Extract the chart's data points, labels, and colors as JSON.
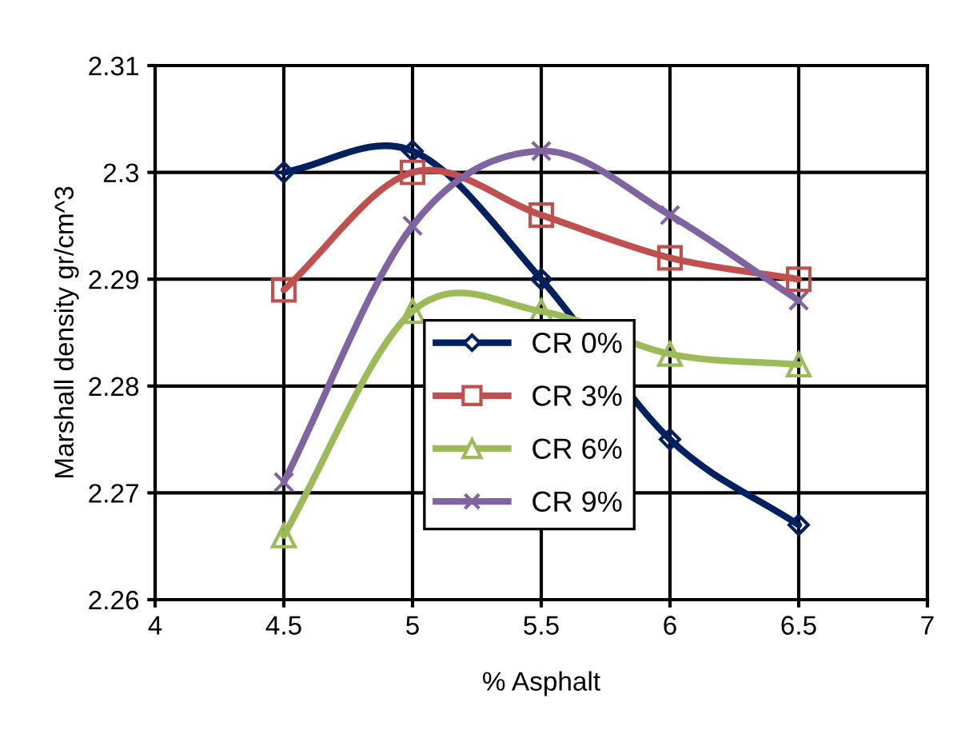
{
  "chart_data": {
    "type": "line",
    "xlabel": "% Asphalt",
    "ylabel": "Marshall density gr/cm^3",
    "x": [
      4.5,
      5,
      5.5,
      6,
      6.5
    ],
    "series": [
      {
        "name": "CR 0%",
        "color": "#002060",
        "marker": "diamond",
        "values": [
          2.3,
          2.302,
          2.29,
          2.275,
          2.267
        ]
      },
      {
        "name": "CR 3%",
        "color": "#c0504d",
        "marker": "square",
        "values": [
          2.289,
          2.3,
          2.296,
          2.292,
          2.29
        ]
      },
      {
        "name": "CR 6%",
        "color": "#9bbb59",
        "marker": "triangle",
        "values": [
          2.266,
          2.287,
          2.287,
          2.283,
          2.282
        ]
      },
      {
        "name": "CR 9%",
        "color": "#8064a2",
        "marker": "cross",
        "values": [
          2.271,
          2.295,
          2.302,
          2.296,
          2.288
        ]
      }
    ],
    "xlim": [
      4,
      7
    ],
    "xticks": [
      4,
      4.5,
      5,
      5.5,
      6,
      6.5,
      7
    ],
    "ylim": [
      2.26,
      2.31
    ],
    "yticks": [
      2.26,
      2.27,
      2.28,
      2.29,
      2.3,
      2.31
    ],
    "grid": true,
    "legend": "bottom"
  }
}
